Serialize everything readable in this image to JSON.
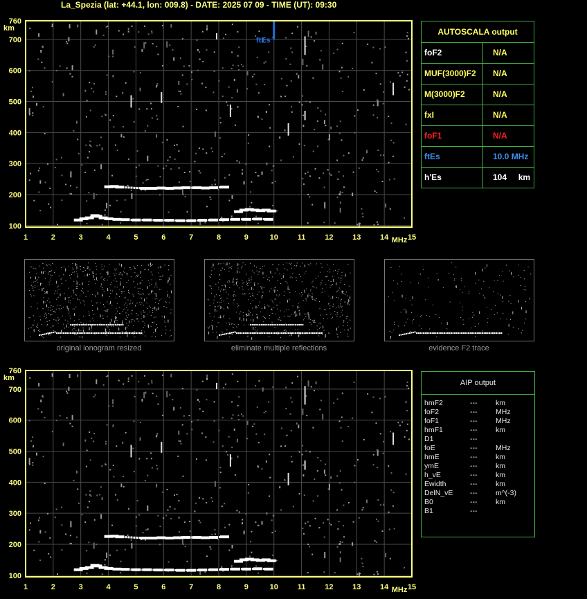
{
  "title": "La_Spezia (lat: +44.1, lon: 009.8) - DATE: 2025 07 09 - TIME (UT): 09:30",
  "chart_data": {
    "type": "scatter",
    "xlabel": "MHz",
    "ylabel": "km",
    "xlim": [
      1,
      15
    ],
    "ylim": [
      95,
      760
    ],
    "x_ticks": [
      "1",
      "2",
      "3",
      "4",
      "5",
      "6",
      "7",
      "8",
      "9",
      "10",
      "11",
      "12",
      "13",
      "14",
      "15"
    ],
    "y_ticks": [
      "100",
      "200",
      "300",
      "400",
      "500",
      "600",
      "700",
      "760"
    ],
    "grid": true,
    "ftEs_marker": {
      "label": "ftEs",
      "x": 10.0,
      "color": "#1e6fe0"
    },
    "traces": [
      {
        "name": "Es trace",
        "x": [
          2.9,
          3.1,
          3.3,
          3.5,
          3.6,
          3.8,
          4.0,
          4.3,
          4.6,
          5.0,
          5.4,
          5.8,
          6.2,
          6.6,
          7.0,
          7.4,
          7.8,
          8.2,
          8.6,
          9.0,
          9.4,
          9.8
        ],
        "y": [
          118,
          122,
          125,
          132,
          130,
          125,
          122,
          120,
          119,
          118,
          118,
          117,
          117,
          116,
          116,
          117,
          118,
          119,
          120,
          120,
          121,
          120
        ]
      },
      {
        "name": "2Es trace",
        "x": [
          4.0,
          4.2,
          4.4,
          5.3,
          5.6,
          5.9,
          6.2,
          6.5,
          6.8,
          7.2,
          7.5,
          7.8,
          8.2
        ],
        "y": [
          225,
          226,
          224,
          220,
          220,
          221,
          220,
          221,
          222,
          222,
          221,
          222,
          224
        ]
      },
      {
        "name": "upper cluster",
        "x": [
          8.7,
          8.9,
          9.1,
          9.3,
          9.5,
          9.7,
          9.9
        ],
        "y": [
          145,
          150,
          152,
          150,
          148,
          150,
          147
        ]
      }
    ]
  },
  "autoscala": {
    "header": "AUTOSCALA output",
    "rows": [
      {
        "key": "foF2",
        "value": "N/A",
        "key_color": "#ffffff",
        "value_color": "#ffff60"
      },
      {
        "key": "MUF(3000)F2",
        "value": "N/A",
        "key_color": "#ffff60",
        "value_color": "#ffff60"
      },
      {
        "key": "M(3000)F2",
        "value": "N/A",
        "key_color": "#ffff60",
        "value_color": "#ffff60"
      },
      {
        "key": "fxI",
        "value": "N/A",
        "key_color": "#ffff60",
        "value_color": "#ffff60"
      },
      {
        "key": "foF1",
        "value": "N/A",
        "key_color": "#ff2020",
        "value_color": "#ff2020"
      },
      {
        "key": "ftEs",
        "value": "10.0 MHz",
        "key_color": "#3b8ff0",
        "value_color": "#3b8ff0"
      },
      {
        "key": "h'Es",
        "value": "104     km",
        "key_color": "#ffffff",
        "value_color": "#ffffff"
      }
    ]
  },
  "thumbnails": [
    {
      "caption": "original ionogram resized"
    },
    {
      "caption": "eliminate multiple reflections"
    },
    {
      "caption": "evidence F2 trace"
    }
  ],
  "aip": {
    "header": "AIP output",
    "rows": [
      {
        "param": "hmF2",
        "val": "---",
        "unit": "km"
      },
      {
        "param": "foF2",
        "val": "---",
        "unit": "MHz"
      },
      {
        "param": "foF1",
        "val": "---",
        "unit": "MHz"
      },
      {
        "param": "hmF1",
        "val": "---",
        "unit": "km"
      },
      {
        "param": "D1",
        "val": "---",
        "unit": ""
      },
      {
        "param": "foE",
        "val": "---",
        "unit": "MHz"
      },
      {
        "param": "hmE",
        "val": "---",
        "unit": "km"
      },
      {
        "param": "ymE",
        "val": "---",
        "unit": "km"
      },
      {
        "param": "h_vE",
        "val": "---",
        "unit": "km"
      },
      {
        "param": "Ewidth",
        "val": "---",
        "unit": "km"
      },
      {
        "param": "DelN_vE",
        "val": "---",
        "unit": "m^(-3)"
      },
      {
        "param": "B0",
        "val": "---",
        "unit": "km"
      },
      {
        "param": "B1",
        "val": "---",
        "unit": ""
      }
    ]
  }
}
